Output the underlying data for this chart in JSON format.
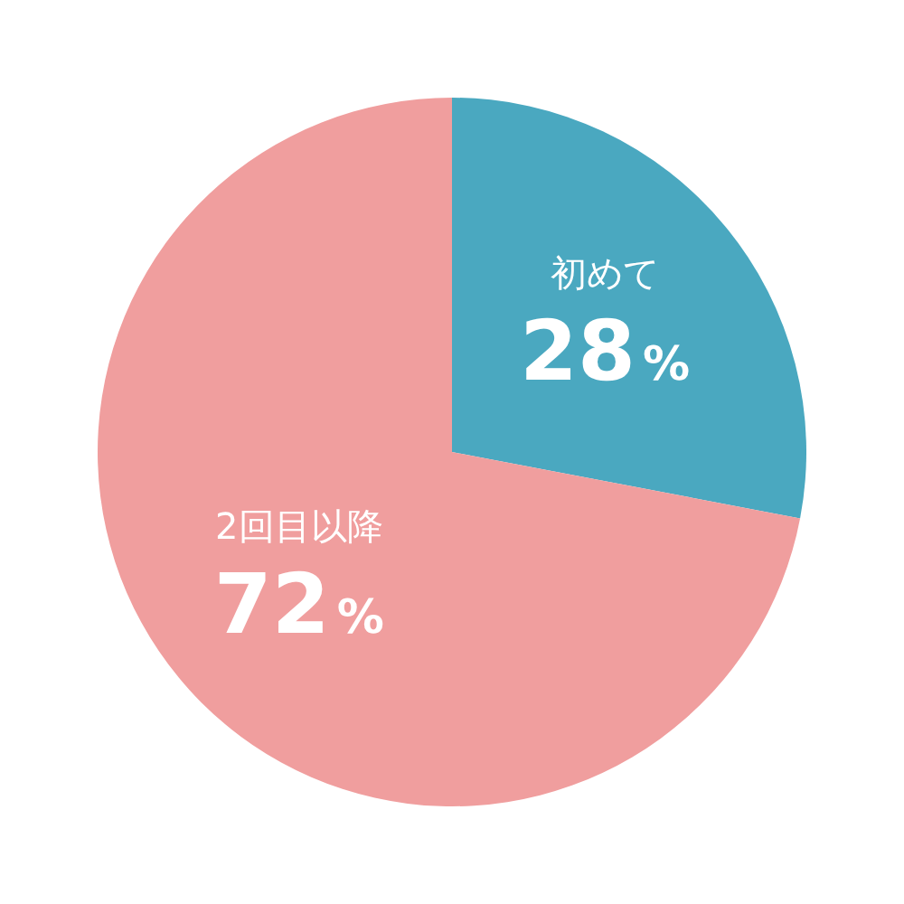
{
  "chart_data": {
    "type": "pie",
    "categories": [
      "初めて",
      "2回目以降"
    ],
    "values": [
      28,
      72
    ],
    "colors": [
      "#4aa8c0",
      "#f09e9e"
    ],
    "value_labels": [
      "28%",
      "72%"
    ]
  }
}
